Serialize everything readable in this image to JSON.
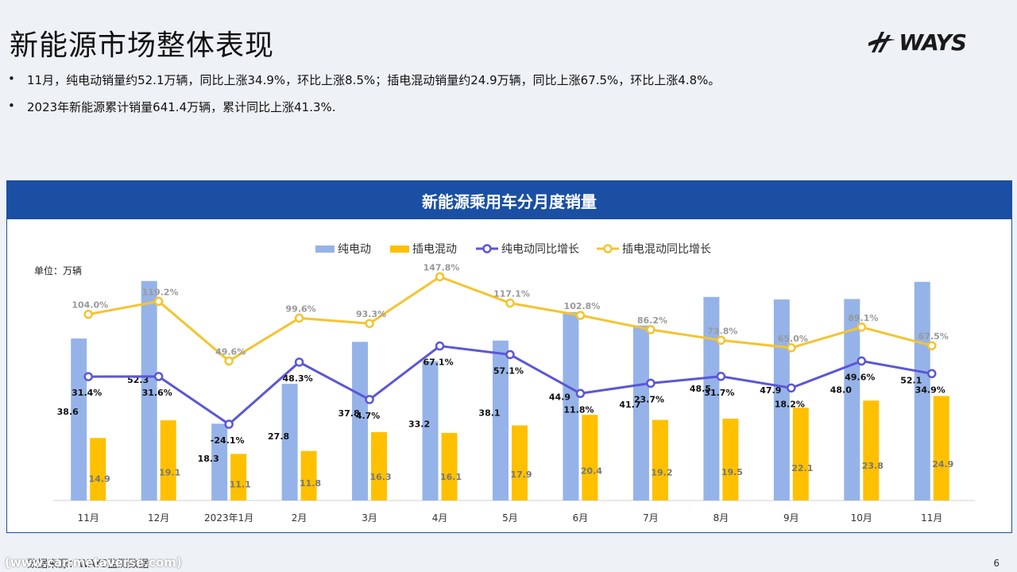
{
  "page": {
    "title": "新能源市场整体表现",
    "logo_text": "WAYS",
    "bullets": [
      "11月，纯电动销量约52.1万辆，同比上涨34.9%，环比上涨8.5%；插电混动销量约24.9万辆，同比上涨67.5%，环比上涨4.8%。",
      "2023年新能源累计销量641.4万辆，累计同比上涨41.3%."
    ],
    "source": "数据来源：WAYS监测数据",
    "url_watermark": "(www.car-metaverse.com)",
    "page_number": "6"
  },
  "chart_data": {
    "type": "bar",
    "title": "新能源乘用车分月度销量",
    "unit_label": "单位：万辆",
    "categories": [
      "11月",
      "12月",
      "2023年1月",
      "2月",
      "3月",
      "4月",
      "5月",
      "6月",
      "7月",
      "8月",
      "9月",
      "10月",
      "11月"
    ],
    "series": [
      {
        "name": "纯电动",
        "type": "bar",
        "color": "#95b3e8",
        "values": [
          38.6,
          52.3,
          18.3,
          27.8,
          37.8,
          33.2,
          38.1,
          44.9,
          41.7,
          48.5,
          47.9,
          48.0,
          52.1
        ]
      },
      {
        "name": "插电混动",
        "type": "bar",
        "color": "#ffc000",
        "values": [
          14.9,
          19.1,
          11.1,
          11.8,
          16.3,
          16.1,
          17.9,
          20.4,
          19.2,
          19.5,
          22.1,
          23.8,
          24.9
        ]
      },
      {
        "name": "纯电动同比增长",
        "type": "line",
        "color": "#5b57d6",
        "values": [
          31.4,
          31.6,
          -24.1,
          48.3,
          4.7,
          67.1,
          57.1,
          11.8,
          23.7,
          31.7,
          18.2,
          49.6,
          34.9
        ]
      },
      {
        "name": "插电混动同比增长",
        "type": "line",
        "color": "#f4c430",
        "values": [
          104.0,
          119.2,
          49.6,
          99.6,
          93.3,
          147.8,
          117.1,
          102.8,
          86.2,
          73.8,
          65.0,
          89.1,
          67.5
        ]
      }
    ],
    "legend_position": "top-center",
    "grid": false
  }
}
